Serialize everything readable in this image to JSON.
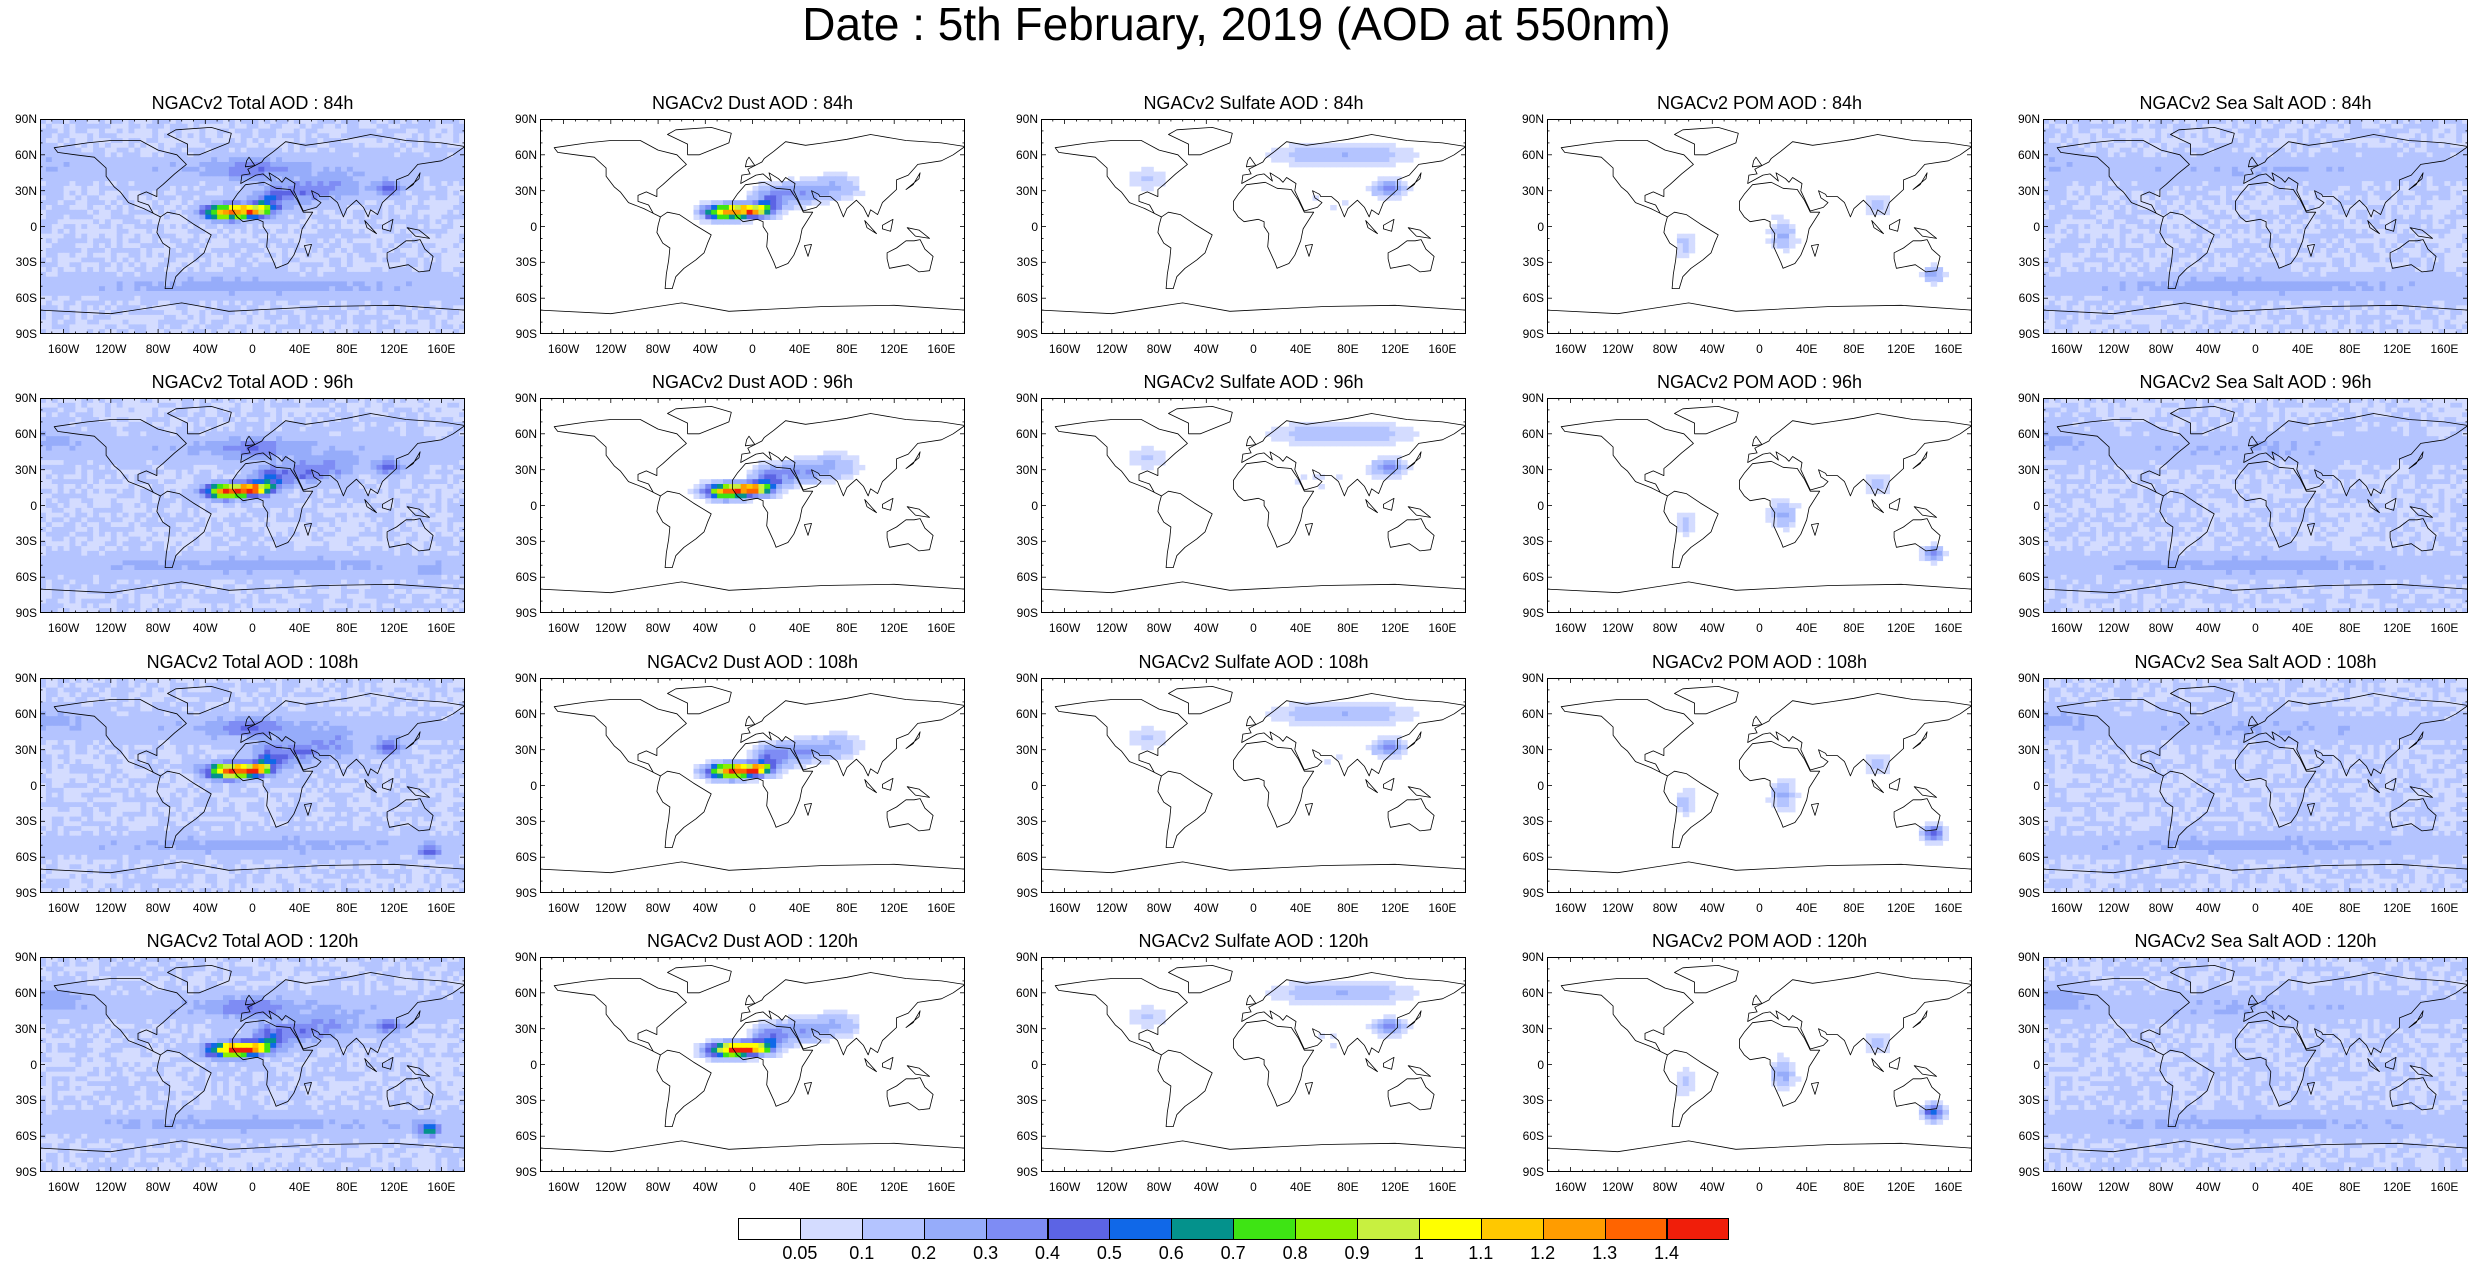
{
  "title": "Date : 5th February, 2019 (AOD at 550nm)",
  "map_axes": {
    "lat_ticks": [
      "90N",
      "60N",
      "30N",
      "0",
      "30S",
      "60S",
      "90S"
    ],
    "lon_ticks": [
      "160W",
      "120W",
      "80W",
      "40W",
      "0",
      "40E",
      "80E",
      "120E",
      "160E"
    ]
  },
  "panels": [
    {
      "title": "NGACv2 Total AOD : 84h",
      "variable": "total",
      "forecast_hour": 84
    },
    {
      "title": "NGACv2 Dust AOD : 84h",
      "variable": "dust",
      "forecast_hour": 84
    },
    {
      "title": "NGACv2 Sulfate AOD : 84h",
      "variable": "sulfate",
      "forecast_hour": 84
    },
    {
      "title": "NGACv2 POM AOD : 84h",
      "variable": "pom",
      "forecast_hour": 84
    },
    {
      "title": "NGACv2 Sea Salt AOD : 84h",
      "variable": "seasalt",
      "forecast_hour": 84
    },
    {
      "title": "NGACv2 Total AOD : 96h",
      "variable": "total",
      "forecast_hour": 96
    },
    {
      "title": "NGACv2 Dust AOD : 96h",
      "variable": "dust",
      "forecast_hour": 96
    },
    {
      "title": "NGACv2 Sulfate AOD : 96h",
      "variable": "sulfate",
      "forecast_hour": 96
    },
    {
      "title": "NGACv2 POM AOD : 96h",
      "variable": "pom",
      "forecast_hour": 96
    },
    {
      "title": "NGACv2 Sea Salt AOD : 96h",
      "variable": "seasalt",
      "forecast_hour": 96
    },
    {
      "title": "NGACv2 Total AOD : 108h",
      "variable": "total",
      "forecast_hour": 108
    },
    {
      "title": "NGACv2 Dust AOD : 108h",
      "variable": "dust",
      "forecast_hour": 108
    },
    {
      "title": "NGACv2 Sulfate AOD : 108h",
      "variable": "sulfate",
      "forecast_hour": 108
    },
    {
      "title": "NGACv2 POM AOD : 108h",
      "variable": "pom",
      "forecast_hour": 108
    },
    {
      "title": "NGACv2 Sea Salt AOD : 108h",
      "variable": "seasalt",
      "forecast_hour": 108
    },
    {
      "title": "NGACv2 Total AOD : 120h",
      "variable": "total",
      "forecast_hour": 120
    },
    {
      "title": "NGACv2 Dust AOD : 120h",
      "variable": "dust",
      "forecast_hour": 120
    },
    {
      "title": "NGACv2 Sulfate AOD : 120h",
      "variable": "sulfate",
      "forecast_hour": 120
    },
    {
      "title": "NGACv2 POM AOD : 120h",
      "variable": "pom",
      "forecast_hour": 120
    },
    {
      "title": "NGACv2 Sea Salt  AOD : 120h",
      "variable": "seasalt",
      "forecast_hour": 120
    }
  ],
  "colorbar": {
    "labels": [
      "0.05",
      "0.1",
      "0.2",
      "0.3",
      "0.4",
      "0.5",
      "0.6",
      "0.7",
      "0.8",
      "0.9",
      "1",
      "1.1",
      "1.2",
      "1.3",
      "1.4"
    ],
    "colors": [
      "#ffffff",
      "#d4dcff",
      "#b4c4ff",
      "#96acfa",
      "#7e8cf4",
      "#5c64e4",
      "#1068e8",
      "#04928c",
      "#3ee414",
      "#8af000",
      "#c8f040",
      "#ffff00",
      "#ffc800",
      "#ff9c00",
      "#ff6400",
      "#f01e0a"
    ]
  }
}
